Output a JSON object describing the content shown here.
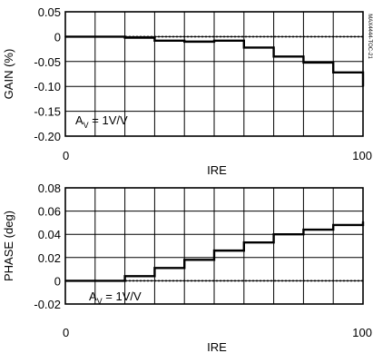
{
  "figure_id": "MAX4444-TOC-21",
  "chart_data": [
    {
      "type": "line",
      "step": true,
      "xlabel": "IRE",
      "ylabel": "GAIN (%)",
      "xlim": [
        0,
        100
      ],
      "ylim": [
        -0.2,
        0.05
      ],
      "grid": true,
      "x_ticks": [
        "0",
        "100"
      ],
      "y_ticks": [
        "0.05",
        "0",
        "-0.05",
        "-0.10",
        "-0.15",
        "-0.20"
      ],
      "annotation": {
        "base": "A",
        "sub": "V",
        "rest": " = 1V/V"
      },
      "reference_line": {
        "y": 0,
        "style": "dotted"
      },
      "series": [
        {
          "x": [
            0,
            10,
            20,
            30,
            40,
            50,
            60,
            70,
            80,
            90,
            100
          ],
          "y": [
            0,
            0,
            -0.002,
            -0.008,
            -0.01,
            -0.008,
            -0.022,
            -0.04,
            -0.052,
            -0.072,
            -0.1
          ]
        }
      ]
    },
    {
      "type": "line",
      "step": true,
      "xlabel": "IRE",
      "ylabel": "PHASE (deg)",
      "xlim": [
        0,
        100
      ],
      "ylim": [
        -0.02,
        0.08
      ],
      "grid": true,
      "x_ticks": [
        "0",
        "100"
      ],
      "y_ticks": [
        "0.08",
        "0.06",
        "0.04",
        "0.02",
        "0",
        "-0.02"
      ],
      "annotation": {
        "base": "A",
        "sub": "V",
        "rest": " = 1V/V"
      },
      "reference_line": {
        "y": 0,
        "style": "dotted"
      },
      "series": [
        {
          "x": [
            0,
            10,
            20,
            30,
            40,
            50,
            60,
            70,
            80,
            90,
            100
          ],
          "y": [
            0,
            0,
            0.004,
            0.011,
            0.018,
            0.026,
            0.033,
            0.04,
            0.044,
            0.048,
            0.051
          ]
        }
      ]
    }
  ]
}
